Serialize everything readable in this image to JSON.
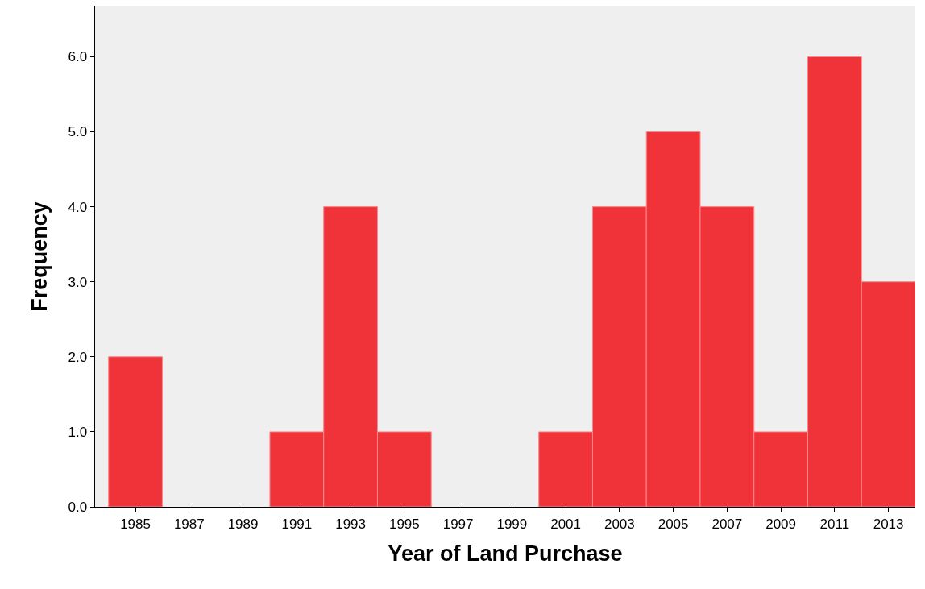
{
  "chart_data": {
    "type": "histogram",
    "xlabel": "Year of Land Purchase",
    "ylabel": "Frequency",
    "bins": [
      1984,
      1986,
      1988,
      1990,
      1992,
      1994,
      1996,
      1998,
      2000,
      2002,
      2004,
      2006,
      2008,
      2010,
      2012,
      2014
    ],
    "values": [
      2,
      0,
      0,
      1,
      4,
      1,
      0,
      0,
      1,
      4,
      5,
      4,
      1,
      6,
      3
    ],
    "color": "#ef3339",
    "xlim": [
      1983.5,
      2014
    ],
    "xticks": [
      1985,
      1987,
      1989,
      1991,
      1993,
      1995,
      1997,
      1999,
      2001,
      2003,
      2005,
      2007,
      2009,
      2011,
      2013
    ],
    "ylim": [
      0,
      6.67
    ],
    "yticks": [
      {
        "value": 0,
        "label": "0.0"
      },
      {
        "value": 1,
        "label": "1.0"
      },
      {
        "value": 2,
        "label": "2.0"
      },
      {
        "value": 3,
        "label": "3.0"
      },
      {
        "value": 4,
        "label": "4.0"
      },
      {
        "value": 5,
        "label": "5.0"
      },
      {
        "value": 6,
        "label": "6.0"
      }
    ],
    "grid": false,
    "legend": false
  }
}
